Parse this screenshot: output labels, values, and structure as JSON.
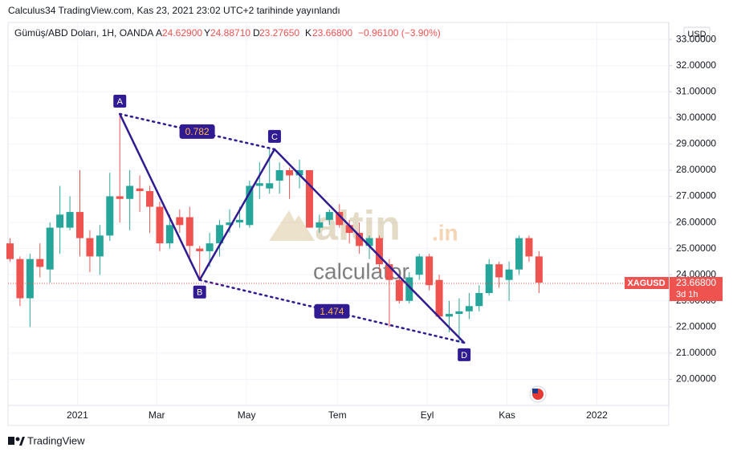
{
  "header": {
    "published": "Calculus34 TradingView.com, Kas 23, 2021 23:02 UTC+2 tarihinde yayınlandı",
    "symbol": "Gümüş/ABD Doları, 1H, OANDA",
    "ohlc": [
      {
        "key": "A",
        "value": "24.62900"
      },
      {
        "key": "Y",
        "value": "24.88710"
      },
      {
        "key": "D",
        "value": "23.27650"
      },
      {
        "key": "K",
        "value": "23.66800"
      }
    ],
    "change": "−0.96100 (−3.90%)"
  },
  "chart_data": {
    "type": "candlestick",
    "currency": "USD",
    "up_color": "#26a69a",
    "down_color": "#ef5350",
    "x": [
      0,
      1,
      2,
      3,
      4,
      5,
      6,
      7,
      8,
      9,
      10,
      11,
      12,
      13,
      14,
      15,
      16,
      17,
      18,
      19,
      20,
      21,
      22,
      23,
      24,
      25,
      26,
      27,
      28,
      29,
      30,
      31,
      32,
      33,
      34,
      35,
      36,
      37,
      38,
      39,
      40,
      41,
      42,
      43,
      44,
      45,
      46,
      47,
      48,
      49,
      50,
      51,
      52,
      53
    ],
    "open": [
      25.2,
      24.6,
      23.1,
      24.6,
      24.2,
      25.8,
      25.8,
      26.4,
      25.4,
      24.7,
      25.5,
      27.0,
      26.9,
      27.3,
      27.2,
      26.6,
      25.2,
      26.2,
      26.2,
      25.0,
      24.9,
      25.2,
      25.9,
      26.0,
      25.9,
      27.4,
      27.3,
      27.6,
      28.0,
      27.8,
      28.0,
      25.8,
      26.1,
      26.4,
      25.9,
      25.6,
      25.1,
      25.4,
      24.4,
      23.8,
      23.0,
      24.0,
      24.7,
      23.8,
      22.4,
      22.5,
      22.6,
      22.8,
      23.3,
      24.4,
      23.8,
      24.2,
      25.4,
      24.7
    ],
    "high": [
      25.4,
      24.7,
      24.8,
      25.2,
      26.0,
      27.4,
      27.0,
      28.0,
      25.7,
      25.9,
      27.9,
      30.1,
      28.0,
      27.8,
      27.4,
      26.8,
      26.3,
      26.5,
      26.6,
      25.1,
      25.6,
      26.1,
      26.5,
      26.6,
      27.6,
      28.3,
      28.8,
      28.3,
      28.1,
      28.4,
      28.0,
      26.3,
      26.5,
      26.7,
      26.1,
      26.0,
      25.5,
      25.5,
      24.6,
      24.0,
      24.1,
      24.8,
      24.8,
      24.0,
      23.0,
      23.1,
      23.3,
      23.6,
      24.6,
      24.5,
      24.5,
      25.5,
      25.5,
      24.9
    ],
    "low": [
      24.5,
      22.8,
      22.0,
      23.9,
      23.7,
      24.8,
      25.7,
      24.7,
      24.1,
      24.0,
      25.3,
      26.0,
      25.7,
      26.4,
      25.6,
      24.9,
      25.0,
      25.6,
      24.5,
      23.8,
      24.3,
      24.7,
      25.6,
      25.8,
      25.8,
      26.9,
      27.1,
      27.1,
      26.9,
      27.3,
      25.8,
      25.6,
      25.9,
      25.8,
      25.2,
      24.8,
      24.6,
      24.1,
      22.0,
      22.9,
      22.9,
      23.8,
      23.4,
      22.3,
      21.8,
      21.4,
      22.3,
      22.6,
      23.2,
      23.5,
      23.0,
      24.0,
      24.5,
      23.3
    ],
    "close": [
      24.6,
      23.1,
      24.6,
      24.3,
      25.8,
      26.3,
      26.4,
      25.4,
      24.7,
      25.5,
      27.0,
      26.9,
      27.4,
      27.2,
      26.6,
      25.2,
      25.9,
      25.9,
      25.1,
      24.9,
      25.2,
      25.9,
      26.0,
      26.1,
      27.4,
      27.5,
      27.5,
      28.0,
      27.8,
      28.0,
      25.8,
      26.0,
      26.4,
      25.9,
      25.6,
      25.1,
      25.4,
      24.4,
      23.8,
      23.0,
      23.9,
      24.7,
      23.6,
      22.4,
      22.5,
      22.6,
      22.8,
      23.3,
      24.4,
      23.9,
      24.2,
      25.4,
      24.7,
      23.7
    ],
    "xlim": [
      -0.2,
      66
    ],
    "xticks": [
      {
        "value": 6.75,
        "label": "2021"
      },
      {
        "value": 14.7,
        "label": "Mar"
      },
      {
        "value": 23.7,
        "label": "May"
      },
      {
        "value": 32.8,
        "label": "Tem"
      },
      {
        "value": 41.8,
        "label": "Eyl"
      },
      {
        "value": 49.8,
        "label": "Kas"
      },
      {
        "value": 58.8,
        "label": "2022"
      }
    ],
    "ylim": [
      19,
      33.65
    ],
    "yticks": [
      {
        "value": 20,
        "label": "20.00000"
      },
      {
        "value": 21,
        "label": "21.00000"
      },
      {
        "value": 22,
        "label": "22.00000"
      },
      {
        "value": 23,
        "label": "23.00000"
      },
      {
        "value": 24,
        "label": "24.00000"
      },
      {
        "value": 25,
        "label": "25.00000"
      },
      {
        "value": 26,
        "label": "26.00000"
      },
      {
        "value": 27,
        "label": "27.00000"
      },
      {
        "value": 28,
        "label": "28.00000"
      },
      {
        "value": 29,
        "label": "29.00000"
      },
      {
        "value": 30,
        "label": "30.00000"
      },
      {
        "value": 31,
        "label": "31.00000"
      },
      {
        "value": 32,
        "label": "32.00000"
      },
      {
        "value": 33,
        "label": "33.00000"
      }
    ],
    "grid": true,
    "last_price": {
      "value": 23.668,
      "label": "23.66800",
      "ticker": "XAGUSD",
      "countdown": "3d 1h"
    },
    "pattern": {
      "color": "#311b92",
      "points": [
        {
          "label": "A",
          "x": 11,
          "y": 30.15
        },
        {
          "label": "B",
          "x": 19,
          "y": 23.8
        },
        {
          "label": "C",
          "x": 26.5,
          "y": 28.8
        },
        {
          "label": "D",
          "x": 45.5,
          "y": 21.4
        }
      ],
      "ratios": [
        "0.782",
        "1.474"
      ]
    },
    "watermark": {
      "brand": "altin",
      "domain": ".in",
      "sub": "calculator"
    }
  },
  "footer": {
    "brand": "TradingView"
  }
}
